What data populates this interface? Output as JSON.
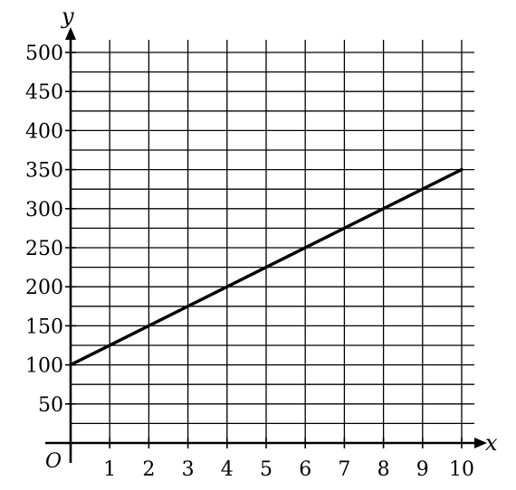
{
  "chart_data": {
    "type": "line",
    "xlabel": "x",
    "ylabel": "y",
    "origin_label": "O",
    "xlim": [
      0,
      10
    ],
    "ylim": [
      0,
      500
    ],
    "x_minor_step": 1,
    "y_minor_step": 25,
    "x_ticks": [
      "1",
      "2",
      "3",
      "4",
      "5",
      "6",
      "7",
      "8",
      "9",
      "10"
    ],
    "y_ticks": [
      "50",
      "100",
      "150",
      "200",
      "250",
      "300",
      "350",
      "400",
      "450",
      "500"
    ],
    "x_tick_values": [
      1,
      2,
      3,
      4,
      5,
      6,
      7,
      8,
      9,
      10
    ],
    "y_tick_values": [
      50,
      100,
      150,
      200,
      250,
      300,
      350,
      400,
      450,
      500
    ],
    "grid": true,
    "series": [
      {
        "x": [
          0,
          10
        ],
        "y": [
          100,
          350
        ]
      }
    ],
    "colors": {
      "line": "#000000",
      "grid": "#000000",
      "axis": "#000000"
    }
  }
}
